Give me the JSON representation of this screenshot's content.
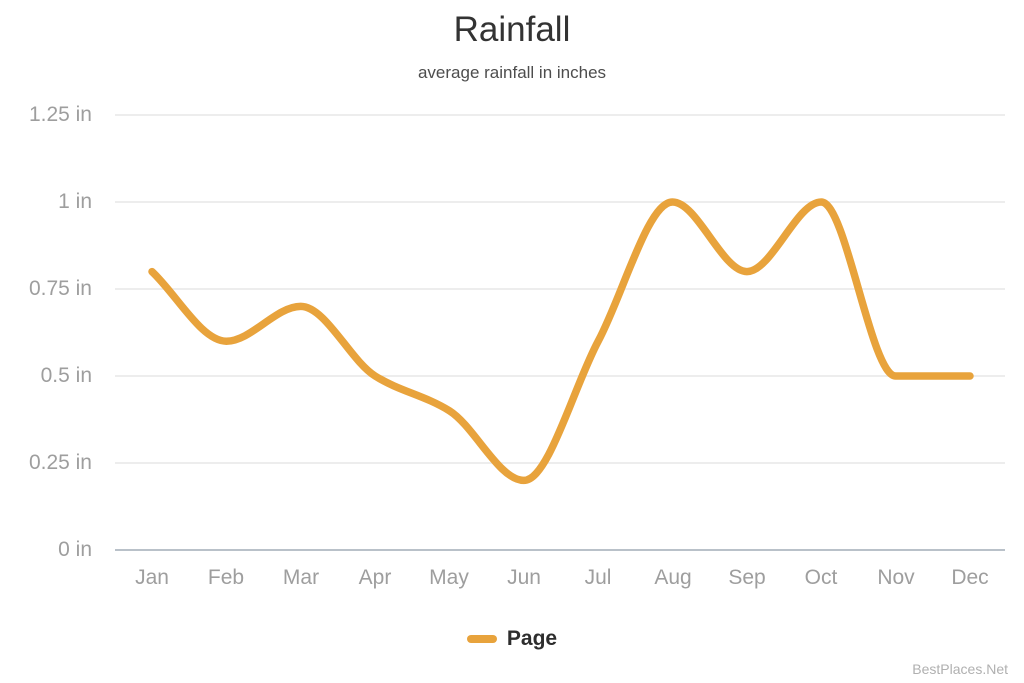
{
  "watermark": "BestPlaces.Net",
  "colors": {
    "line": "#E8A33C",
    "grid": "#E7E7E7",
    "axis": "#B9C1C9",
    "tick_label": "#9E9E9E",
    "title": "#333333"
  },
  "chart_data": {
    "type": "line",
    "title": "Rainfall",
    "subtitle": "average rainfall in inches",
    "categories": [
      "Jan",
      "Feb",
      "Mar",
      "Apr",
      "May",
      "Jun",
      "Jul",
      "Aug",
      "Sep",
      "Oct",
      "Nov",
      "Dec"
    ],
    "series": [
      {
        "name": "Page",
        "color": "#E8A33C",
        "values": [
          0.8,
          0.6,
          0.7,
          0.5,
          0.4,
          0.2,
          0.6,
          1.0,
          0.8,
          1.0,
          0.5,
          0.5
        ]
      }
    ],
    "y_ticks": [
      "1.25 in",
      "1 in",
      "0.75 in",
      "0.5 in",
      "0.25 in",
      "0 in"
    ],
    "unit": "in",
    "ylim": [
      0,
      1.25
    ],
    "ytick_step": 0.25,
    "grid": true,
    "curve": "smooth",
    "legend_position": "bottom"
  }
}
